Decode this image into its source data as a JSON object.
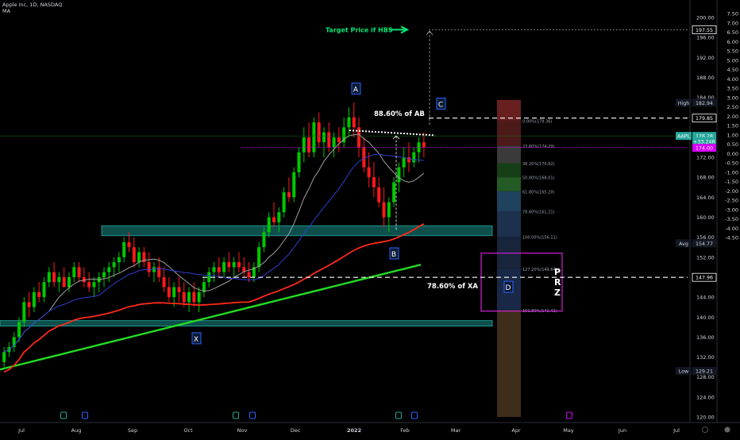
{
  "header": {
    "symbol": "Apple Inc, 1D, NASDAQ",
    "indicator": "MA"
  },
  "chart_data": {
    "type": "candlestick",
    "x_ticks": [
      "Jul",
      "Aug",
      "Sep",
      "Oct",
      "Nov",
      "Dec",
      "2022",
      "Feb",
      "Mar",
      "Apr",
      "May",
      "Jun",
      "Jul"
    ],
    "price_ticks": [
      120,
      124,
      128,
      132,
      136,
      140,
      144,
      148,
      152,
      156,
      160,
      164,
      168,
      172,
      176,
      180,
      184,
      188,
      192,
      196,
      200
    ],
    "ratio_ticks": [
      "7.50",
      "7.00",
      "6.50",
      "6.00",
      "5.50",
      "5.00",
      "4.50",
      "4.00",
      "3.50",
      "3.00",
      "2.50",
      "2.00",
      "1.50",
      "1.00",
      "0.50",
      "0.00",
      "-0.50",
      "-1.00",
      "-1.50",
      "-2.00",
      "-2.50",
      "-3.00",
      "-3.50",
      "-4.00",
      "-4.50"
    ],
    "ylim": [
      120,
      202
    ],
    "candles": [
      [
        131,
        134,
        130,
        133
      ],
      [
        133,
        135,
        132,
        134
      ],
      [
        134,
        137,
        133,
        136
      ],
      [
        136,
        140,
        135,
        139
      ],
      [
        139,
        144,
        138,
        143
      ],
      [
        143,
        145,
        140,
        142
      ],
      [
        142,
        146,
        141,
        145
      ],
      [
        145,
        147,
        143,
        144
      ],
      [
        144,
        148,
        143,
        147
      ],
      [
        147,
        150,
        146,
        149
      ],
      [
        149,
        151,
        146,
        147
      ],
      [
        147,
        149,
        145,
        148
      ],
      [
        148,
        150,
        146,
        146
      ],
      [
        146,
        149,
        145,
        148
      ],
      [
        148,
        151,
        147,
        150
      ],
      [
        150,
        151,
        147,
        148
      ],
      [
        148,
        150,
        146,
        147
      ],
      [
        147,
        149,
        145,
        146
      ],
      [
        146,
        148,
        144,
        147
      ],
      [
        147,
        149,
        145,
        148
      ],
      [
        148,
        150,
        146,
        149
      ],
      [
        149,
        151,
        147,
        150
      ],
      [
        150,
        152,
        148,
        151
      ],
      [
        151,
        153,
        149,
        152
      ],
      [
        152,
        156,
        151,
        155
      ],
      [
        155,
        157,
        153,
        154
      ],
      [
        154,
        156,
        150,
        151
      ],
      [
        151,
        154,
        150,
        153
      ],
      [
        153,
        154,
        150,
        151
      ],
      [
        151,
        153,
        148,
        149
      ],
      [
        149,
        151,
        147,
        150
      ],
      [
        150,
        152,
        147,
        148
      ],
      [
        148,
        150,
        145,
        146
      ],
      [
        146,
        148,
        143,
        144
      ],
      [
        144,
        147,
        142,
        146
      ],
      [
        146,
        148,
        143,
        145
      ],
      [
        145,
        147,
        142,
        143
      ],
      [
        143,
        146,
        141,
        145
      ],
      [
        145,
        147,
        142,
        143
      ],
      [
        143,
        146,
        141,
        145
      ],
      [
        145,
        148,
        144,
        147
      ],
      [
        147,
        150,
        146,
        149
      ],
      [
        149,
        151,
        147,
        150
      ],
      [
        150,
        152,
        148,
        149
      ],
      [
        149,
        152,
        148,
        151
      ],
      [
        151,
        153,
        149,
        150
      ],
      [
        150,
        152,
        148,
        151
      ],
      [
        151,
        153,
        149,
        150
      ],
      [
        150,
        152,
        148,
        149
      ],
      [
        149,
        151,
        147,
        148
      ],
      [
        148,
        151,
        147,
        150
      ],
      [
        150,
        155,
        149,
        154
      ],
      [
        154,
        158,
        153,
        157
      ],
      [
        157,
        161,
        156,
        160
      ],
      [
        160,
        163,
        158,
        159
      ],
      [
        159,
        162,
        157,
        161
      ],
      [
        161,
        166,
        160,
        165
      ],
      [
        165,
        168,
        163,
        164
      ],
      [
        164,
        170,
        163,
        169
      ],
      [
        169,
        174,
        168,
        173
      ],
      [
        173,
        178,
        171,
        176
      ],
      [
        176,
        179,
        172,
        173
      ],
      [
        173,
        180,
        172,
        179
      ],
      [
        179,
        181,
        174,
        175
      ],
      [
        175,
        178,
        172,
        177
      ],
      [
        177,
        179,
        173,
        174
      ],
      [
        174,
        177,
        172,
        176
      ],
      [
        176,
        178,
        173,
        175
      ],
      [
        175,
        180,
        174,
        178
      ],
      [
        178,
        182,
        176,
        180
      ],
      [
        180,
        183,
        176,
        178
      ],
      [
        178,
        180,
        172,
        174
      ],
      [
        174,
        176,
        169,
        170
      ],
      [
        170,
        173,
        166,
        168
      ],
      [
        168,
        171,
        164,
        166
      ],
      [
        166,
        168,
        162,
        163
      ],
      [
        163,
        166,
        158,
        160
      ],
      [
        160,
        164,
        157,
        163
      ],
      [
        163,
        168,
        162,
        167
      ],
      [
        167,
        171,
        165,
        170
      ],
      [
        170,
        174,
        168,
        172
      ],
      [
        172,
        175,
        169,
        171
      ],
      [
        171,
        174,
        170,
        173
      ],
      [
        173,
        176,
        171,
        175
      ],
      [
        175,
        177,
        172,
        174
      ]
    ],
    "moving_averages": [
      {
        "color": "#a0a0a0",
        "period": 10
      },
      {
        "color": "#2f3fd0",
        "period": 20
      },
      {
        "color": "#ff2a1a",
        "period": 50
      }
    ],
    "ma200": [
      130,
      131,
      132,
      133,
      134,
      135,
      136,
      137,
      138,
      139,
      140,
      141,
      142,
      143,
      144,
      145,
      146,
      147,
      148,
      149,
      150,
      151
    ],
    "points": {
      "X": 137.6,
      "A": 183.0,
      "B": 153.9,
      "C": 183.0,
      "D": 146.0
    },
    "labels": {
      "target": "Target Price if HBS",
      "ab": "88.60% of AB",
      "xa": "78.60% of XA",
      "prz": "P\nR\nZ"
    },
    "fib_levels": [
      {
        "label": "0.00%(179.36)",
        "price": 179.36
      },
      {
        "label": "23.60%(174.29)",
        "price": 174.29
      },
      {
        "label": "38.20%(170.82)",
        "price": 170.82
      },
      {
        "label": "50.00%(168.01)",
        "price": 168.01
      },
      {
        "label": "61.80%(165.20)",
        "price": 165.2
      },
      {
        "label": "78.60%(161.21)",
        "price": 161.21
      },
      {
        "label": "100.00%(156.11)",
        "price": 156.11
      },
      {
        "label": "127.20%(149.64)",
        "price": 149.64
      },
      {
        "label": "161.80%(141.41)",
        "price": 141.41
      }
    ],
    "price_tags": [
      {
        "text": "197.55",
        "price": 197.55,
        "bg": "#000000",
        "fg": "#ffffff",
        "border": "#ffffff"
      },
      {
        "text": "182.94",
        "price": 182.94,
        "bg": "#131722",
        "fg": "#d1d4dc",
        "prefix": "High"
      },
      {
        "text": "179.85",
        "price": 179.85,
        "bg": "#000000",
        "fg": "#ffffff",
        "border": "#ffffff"
      },
      {
        "text": "176.28",
        "price": 176.28,
        "bg": "#26a69a",
        "fg": "#ffffff",
        "prefix": "AAPL"
      },
      {
        "text": "+33.24R",
        "price": 175.2,
        "bg": "#26a69a",
        "fg": "#ffffff"
      },
      {
        "text": "174.00",
        "price": 173.9,
        "bg": "#d500f9",
        "fg": "#ffffff"
      },
      {
        "text": "154.77",
        "price": 154.77,
        "bg": "#131722",
        "fg": "#d1d4dc",
        "prefix": "Avg"
      },
      {
        "text": "147.96",
        "price": 147.96,
        "bg": "#000000",
        "fg": "#ffffff",
        "border": "#ffffff"
      },
      {
        "text": "129.21",
        "price": 129.21,
        "bg": "#131722",
        "fg": "#d1d4dc",
        "prefix": "Low"
      }
    ],
    "colors": {
      "up": "#00c800",
      "down": "#ff1a1a",
      "zone": "#0e4f4c",
      "zone_border": "#23a89f",
      "prz": "#d21fd6",
      "target": "#00e676",
      "ma200": "#22dd22"
    }
  }
}
